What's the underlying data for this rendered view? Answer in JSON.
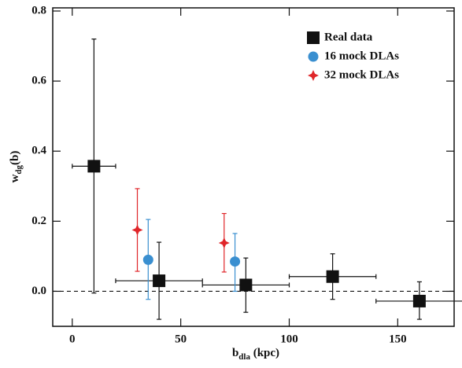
{
  "chart_data": {
    "type": "scatter",
    "xlabel": {
      "main": "b",
      "sub": "dla",
      "rest": " (kpc)"
    },
    "ylabel": {
      "main": "w",
      "sub": "dg",
      "rest": "(b)"
    },
    "xlim": [
      -9,
      176
    ],
    "ylim": [
      -0.1,
      0.8
    ],
    "xticks": [
      0,
      50,
      100,
      150
    ],
    "yticks": [
      {
        "value": 0,
        "label": "0.0"
      },
      0.2,
      0.4,
      0.6,
      0.8
    ],
    "hline": 0,
    "legend": "upper right",
    "series": [
      {
        "name": "Real data",
        "color": "#111111",
        "marker": "square",
        "x": [
          10,
          40,
          80,
          120,
          160
        ],
        "values": [
          0.357,
          0.03,
          0.018,
          0.042,
          -0.028
        ],
        "y_low": [
          -0.005,
          -0.08,
          -0.06,
          -0.023,
          -0.08
        ],
        "y_high": [
          0.72,
          0.14,
          0.095,
          0.107,
          0.027
        ],
        "x_low": [
          0,
          20,
          60,
          100,
          140
        ],
        "x_high": [
          20,
          60,
          100,
          140,
          180
        ]
      },
      {
        "name": "16 mock DLAs",
        "color": "#3a8fd0",
        "marker": "circle",
        "x": [
          35,
          75
        ],
        "values": [
          0.09,
          0.085
        ],
        "y_low": [
          -0.023,
          0.0
        ],
        "y_high": [
          0.205,
          0.165
        ]
      },
      {
        "name": "32 mock DLAs",
        "color": "#e0262a",
        "marker": "star",
        "x": [
          30,
          70
        ],
        "values": [
          0.175,
          0.138
        ],
        "y_low": [
          0.057,
          0.055
        ],
        "y_high": [
          0.293,
          0.222
        ]
      }
    ]
  }
}
